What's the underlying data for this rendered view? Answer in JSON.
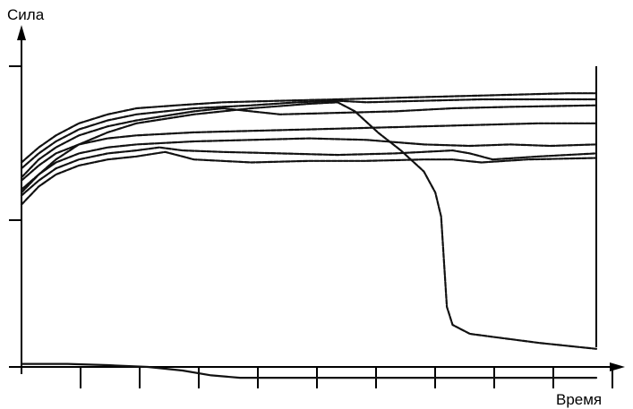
{
  "chart_data": {
    "type": "line",
    "title": "",
    "xlabel": "Время",
    "ylabel": "Сила",
    "xlim": [
      0,
      100
    ],
    "ylim": [
      0,
      100
    ],
    "x_tick_count": 10,
    "y_tick_count": 2,
    "grid": false,
    "legend": "none",
    "series": [
      {
        "x": [
          0,
          3,
          6,
          10,
          15,
          20,
          27,
          35,
          45,
          55,
          65,
          75,
          85,
          95,
          100
        ],
        "y": [
          68,
          73,
          77,
          81,
          84,
          86,
          87,
          88,
          88.5,
          89,
          89.5,
          90,
          90.5,
          91,
          91
        ]
      },
      {
        "x": [
          0,
          3,
          6,
          10,
          15,
          20,
          30,
          40,
          48,
          55,
          60,
          70,
          80,
          90,
          100
        ],
        "y": [
          66,
          71,
          75,
          79,
          82,
          84,
          86,
          87,
          88,
          88.5,
          88,
          88.5,
          89,
          89,
          89
        ]
      },
      {
        "x": [
          0,
          3,
          6,
          10,
          15,
          20,
          30,
          35,
          40,
          45,
          55,
          65,
          75,
          85,
          100
        ],
        "y": [
          63,
          69,
          73,
          77,
          80,
          82,
          85,
          86,
          85,
          84,
          84.5,
          85,
          86,
          86.5,
          87
        ]
      },
      {
        "x": [
          0,
          3,
          6,
          10,
          15,
          20,
          30,
          40,
          50,
          60,
          70,
          80,
          90,
          100
        ],
        "y": [
          62,
          67,
          71,
          74,
          76,
          77,
          78,
          78.5,
          79,
          79.5,
          80,
          80.5,
          81,
          81
        ]
      },
      {
        "x": [
          0,
          3,
          6,
          10,
          15,
          20,
          30,
          40,
          50,
          60,
          70,
          78,
          85,
          92,
          100
        ],
        "y": [
          59,
          64,
          68,
          71,
          73,
          74,
          75,
          75.5,
          76,
          75.5,
          74,
          73.5,
          74,
          73.5,
          74
        ]
      },
      {
        "x": [
          0,
          3,
          6,
          10,
          15,
          20,
          24,
          28,
          35,
          45,
          55,
          65,
          75,
          78,
          82,
          90,
          100
        ],
        "y": [
          57,
          62,
          66,
          69,
          71,
          72,
          73,
          72,
          71.5,
          71,
          70.5,
          71,
          72,
          71,
          69,
          70,
          71
        ]
      },
      {
        "x": [
          0,
          3,
          6,
          10,
          15,
          20,
          25,
          30,
          40,
          50,
          60,
          70,
          75,
          80,
          88,
          100
        ],
        "y": [
          54,
          60,
          64,
          67,
          69,
          70,
          71.5,
          69,
          68,
          68.5,
          68.5,
          69,
          69,
          68,
          69,
          69.5
        ]
      },
      {
        "x": [
          0,
          3,
          6,
          10,
          15,
          20,
          30,
          40,
          50,
          55,
          58,
          62,
          66,
          70,
          72,
          73,
          73.5,
          74,
          75,
          78,
          82,
          90,
          100
        ],
        "y": [
          58,
          64,
          69,
          74,
          78,
          81,
          84,
          86,
          87.5,
          88,
          85,
          78,
          72,
          65,
          58,
          50,
          35,
          20,
          14,
          11,
          10,
          8,
          6
        ]
      },
      {
        "x": [
          0,
          8,
          15,
          22,
          28,
          33,
          38,
          45,
          60,
          80,
          100
        ],
        "y": [
          1,
          1,
          0.6,
          0,
          -1.2,
          -2.8,
          -3.6,
          -3.6,
          -3.6,
          -3.6,
          -3.6
        ]
      }
    ]
  }
}
